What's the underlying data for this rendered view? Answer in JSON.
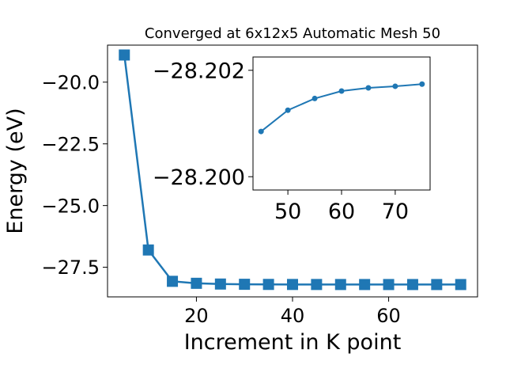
{
  "chart_data": [
    {
      "type": "line",
      "title": "Converged at 6x12x5 Automatic Mesh 50",
      "xlabel": "Increment in K point",
      "ylabel": "Energy (eV)",
      "xlim": [
        1.5,
        78.5
      ],
      "ylim": [
        -28.7,
        -18.5
      ],
      "xticks": [
        20,
        40,
        60
      ],
      "yticks": [
        -20.0,
        -22.5,
        -25.0,
        -27.5
      ],
      "xtick_labels": [
        "20",
        "40",
        "60"
      ],
      "ytick_labels": [
        "−20.0",
        "−22.5",
        "−25.0",
        "−27.5"
      ],
      "grid": false,
      "marker": "square",
      "color": "#1f77b4",
      "series": [
        {
          "x": [
            5,
            10,
            15,
            20,
            25,
            30,
            35,
            40,
            45,
            50,
            55,
            60,
            65,
            70,
            75
          ],
          "y": [
            -18.9,
            -26.8,
            -28.07,
            -28.15,
            -28.18,
            -28.19,
            -28.195,
            -28.197,
            -28.198,
            -28.199,
            -28.1995,
            -28.1998,
            -28.2,
            -28.2,
            -28.2
          ]
        }
      ]
    },
    {
      "type": "line",
      "title": "",
      "inset": true,
      "xlim": [
        43.5,
        76.5
      ],
      "ylim": [
        -28.19975,
        -28.20225
      ],
      "xticks": [
        50,
        60,
        70
      ],
      "yticks": [
        -28.202,
        -28.2
      ],
      "xtick_labels": [
        "50",
        "60",
        "70"
      ],
      "ytick_labels": [
        "−28.202",
        "−28.200"
      ],
      "grid": false,
      "marker": "circle",
      "color": "#1f77b4",
      "series": [
        {
          "x": [
            45,
            50,
            55,
            60,
            65,
            70,
            75
          ],
          "y": [
            -28.20085,
            -28.20125,
            -28.20147,
            -28.20161,
            -28.20167,
            -28.2017,
            -28.20174
          ]
        }
      ]
    }
  ]
}
